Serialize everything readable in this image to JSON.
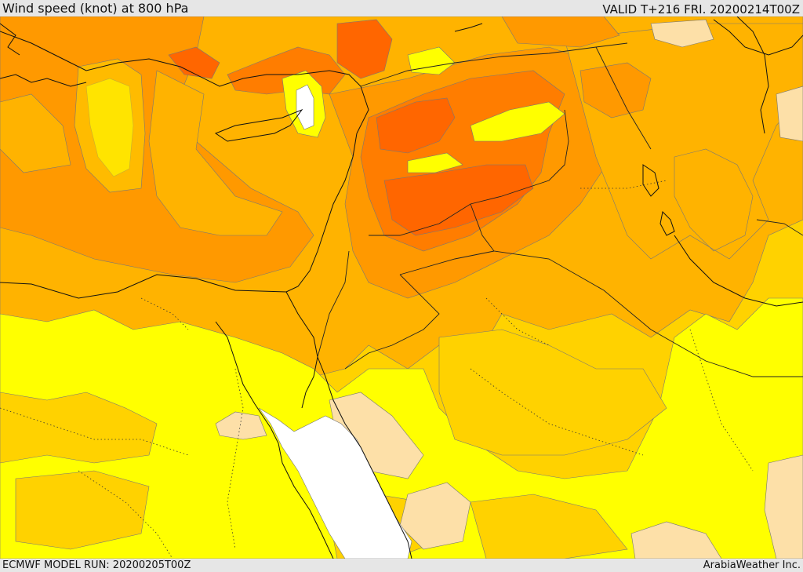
{
  "header": {
    "title": "Wind speed (knot) at 800 hPa",
    "valid": "VALID T+216 FRI. 20200214T00Z"
  },
  "footer": {
    "model_run": "ECMWF MODEL RUN: 20200205T00Z",
    "credit": "ArabiaWeather Inc."
  },
  "colors": {
    "white": "#ffffff",
    "pale": "#fde0a8",
    "yellow": "#ffff00",
    "light_orange": "#ffd200",
    "orange": "#ffb300",
    "dark_orange": "#ff9900",
    "deep_orange": "#ff7d00",
    "red_orange": "#ff6600",
    "coast": "#111111",
    "border": "#222222",
    "contour": "#666666"
  }
}
